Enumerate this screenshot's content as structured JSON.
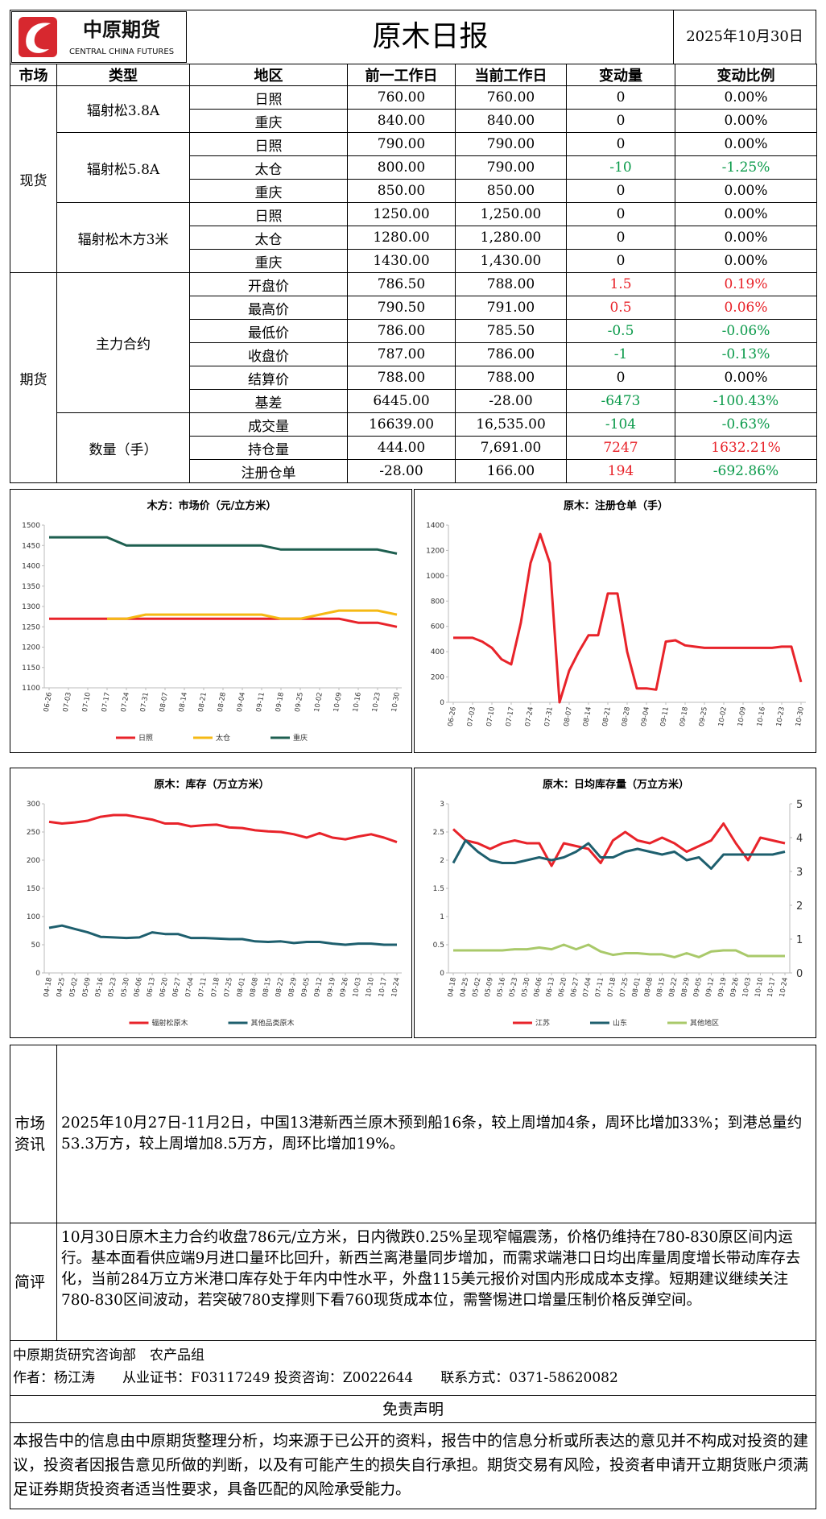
{
  "header": {
    "logo_cn": "中原期货",
    "logo_en": "CENTRAL CHINA FUTURES",
    "title": "原木日报",
    "date": "2025年10月30日"
  },
  "table": {
    "header": [
      "市场",
      "类型",
      "地区",
      "前一工作日",
      "当前工作日",
      "变动量",
      "变动比例"
    ],
    "spot": {
      "market": "现货",
      "groups": [
        {
          "type": "辐射松3.8A",
          "rows": [
            [
              "日照",
              "760.00",
              "760.00",
              "0",
              "0.00%"
            ],
            [
              "重庆",
              "840.00",
              "840.00",
              "0",
              "0.00%"
            ]
          ]
        },
        {
          "type": "辐射松5.8A",
          "rows": [
            [
              "日照",
              "790.00",
              "790.00",
              "0",
              "0.00%"
            ],
            [
              "太仓",
              "800.00",
              "790.00",
              "-10",
              "-1.25%"
            ],
            [
              "重庆",
              "850.00",
              "850.00",
              "0",
              "0.00%"
            ]
          ]
        },
        {
          "type": "辐射松木方3米",
          "rows": [
            [
              "日照",
              "1250.00",
              "1,250.00",
              "0",
              "0.00%"
            ],
            [
              "太仓",
              "1280.00",
              "1,280.00",
              "0",
              "0.00%"
            ],
            [
              "重庆",
              "1430.00",
              "1,430.00",
              "0",
              "0.00%"
            ]
          ]
        }
      ]
    },
    "futures": {
      "market": "期货",
      "groups": [
        {
          "type": "主力合约",
          "rows": [
            [
              "开盘价",
              "786.50",
              "788.00",
              "1.5",
              "0.19%"
            ],
            [
              "最高价",
              "790.50",
              "791.00",
              "0.5",
              "0.06%"
            ],
            [
              "最低价",
              "786.00",
              "785.50",
              "-0.5",
              "-0.06%"
            ],
            [
              "收盘价",
              "787.00",
              "786.00",
              "-1",
              "-0.13%"
            ],
            [
              "结算价",
              "788.00",
              "788.00",
              "0",
              "0.00%"
            ],
            [
              "基差",
              "6445.00",
              "-28.00",
              "-6473",
              "-100.43%"
            ]
          ]
        },
        {
          "type": "数量（手）",
          "rows": [
            [
              "成交量",
              "16639.00",
              "16,535.00",
              "-104",
              "-0.63%"
            ],
            [
              "持仓量",
              "444.00",
              "7,691.00",
              "7247",
              "1632.21%"
            ],
            [
              "注册仓单",
              "-28.00",
              "166.00",
              "194",
              "-692.86%"
            ]
          ]
        }
      ]
    }
  },
  "chart_data": [
    {
      "type": "line",
      "title": "木方：市场价（元/立方米）",
      "legend": "bottom",
      "grid": false,
      "categories": [
        "06-26",
        "07-03",
        "07-10",
        "07-17",
        "07-24",
        "07-31",
        "08-07",
        "08-14",
        "08-21",
        "08-28",
        "09-04",
        "09-11",
        "09-18",
        "09-25",
        "10-02",
        "10-09",
        "10-16",
        "10-23",
        "10-30"
      ],
      "ylim": [
        1100,
        1500
      ],
      "yticks": [
        1100,
        1150,
        1200,
        1250,
        1300,
        1350,
        1400,
        1450,
        1500
      ],
      "series": [
        {
          "name": "日照",
          "color": "#e8232a",
          "values": [
            1270,
            1270,
            1270,
            1270,
            1270,
            1270,
            1270,
            1270,
            1270,
            1270,
            1270,
            1270,
            1270,
            1270,
            1270,
            1270,
            1260,
            1260,
            1250
          ]
        },
        {
          "name": "太仓",
          "color": "#f5b914",
          "values": [
            null,
            null,
            null,
            1270,
            1270,
            1280,
            1280,
            1280,
            1280,
            1280,
            1280,
            1280,
            1270,
            1270,
            1280,
            1290,
            1290,
            1290,
            1280
          ]
        },
        {
          "name": "重庆",
          "color": "#1e5f50",
          "values": [
            1470,
            1470,
            1470,
            1470,
            1450,
            1450,
            1450,
            1450,
            1450,
            1450,
            1450,
            1450,
            1440,
            1440,
            1440,
            1440,
            1440,
            1440,
            1430
          ]
        }
      ]
    },
    {
      "type": "line",
      "title": "原木：注册仓单（手）",
      "legend": "none",
      "grid": false,
      "categories": [
        "06-26",
        null,
        "07-03",
        null,
        "07-10",
        null,
        "07-17",
        null,
        "07-24",
        null,
        "07-31",
        null,
        "08-07",
        null,
        "08-14",
        null,
        "08-21",
        null,
        "08-28",
        null,
        "09-04",
        null,
        "09-11",
        null,
        "09-18",
        null,
        "09-25",
        null,
        "10-02",
        null,
        "10-09",
        null,
        "10-16",
        null,
        "10-23",
        null,
        "10-30"
      ],
      "ylim": [
        0,
        1400
      ],
      "yticks": [
        0,
        200,
        400,
        600,
        800,
        1000,
        1200,
        1400
      ],
      "series": [
        {
          "name": "注册仓单",
          "color": "#e8232a",
          "values": [
            510,
            510,
            510,
            480,
            430,
            340,
            300,
            630,
            1100,
            1330,
            1100,
            0,
            250,
            400,
            530,
            530,
            860,
            860,
            400,
            110,
            110,
            100,
            480,
            490,
            450,
            440,
            430,
            430,
            430,
            430,
            430,
            430,
            430,
            430,
            440,
            440,
            160
          ]
        }
      ]
    },
    {
      "type": "line",
      "title": "原木：库存（万立方米）",
      "legend": "bottom",
      "grid": false,
      "categories": [
        "04-18",
        "04-25",
        "05-02",
        "05-09",
        "05-16",
        "05-23",
        "05-30",
        "06-06",
        "06-13",
        "06-20",
        "06-27",
        "07-04",
        "07-11",
        "07-18",
        "07-25",
        "08-01",
        "08-08",
        "08-15",
        "08-22",
        "08-29",
        "09-05",
        "09-12",
        "09-19",
        "09-26",
        "10-03",
        "10-10",
        "10-17",
        "10-24"
      ],
      "ylim": [
        0,
        300
      ],
      "yticks": [
        0,
        50,
        100,
        150,
        200,
        250,
        300
      ],
      "series": [
        {
          "name": "辐射松原木",
          "color": "#e8232a",
          "values": [
            268,
            265,
            267,
            270,
            277,
            280,
            280,
            276,
            272,
            265,
            265,
            260,
            262,
            263,
            258,
            257,
            253,
            251,
            250,
            246,
            240,
            248,
            240,
            237,
            242,
            246,
            240,
            232
          ]
        },
        {
          "name": "其他品类原木",
          "color": "#1e5f6e",
          "values": [
            80,
            84,
            78,
            72,
            64,
            63,
            62,
            63,
            72,
            69,
            69,
            62,
            62,
            61,
            60,
            60,
            56,
            55,
            56,
            53,
            55,
            55,
            52,
            50,
            52,
            52,
            50,
            50
          ]
        }
      ]
    },
    {
      "type": "line",
      "title": "原木：日均库存量（万立方米）",
      "legend": "bottom",
      "grid": false,
      "categories": [
        "04-18",
        "04-25",
        "05-02",
        "05-09",
        "05-16",
        "05-23",
        "05-30",
        "06-06",
        "06-13",
        "06-20",
        "06-27",
        "07-04",
        "07-11",
        "07-18",
        "07-25",
        "08-01",
        "08-08",
        "08-15",
        "08-22",
        "08-29",
        "09-05",
        "09-12",
        "09-19",
        "09-26",
        "10-03",
        "10-10",
        "10-17",
        "10-24"
      ],
      "ylim": [
        0,
        3
      ],
      "yticks": [
        0,
        0.5,
        1,
        1.5,
        2,
        2.5,
        3
      ],
      "y2lim": [
        0,
        5
      ],
      "y2ticks": [
        0,
        1,
        2,
        3,
        4,
        5
      ],
      "series": [
        {
          "name": "江苏",
          "color": "#e8232a",
          "values": [
            2.55,
            2.35,
            2.3,
            2.2,
            2.3,
            2.35,
            2.3,
            2.3,
            1.9,
            2.3,
            2.25,
            2.2,
            1.95,
            2.35,
            2.5,
            2.35,
            2.3,
            2.4,
            2.3,
            2.15,
            2.25,
            2.35,
            2.65,
            2.3,
            2.0,
            2.4,
            2.35,
            2.3
          ]
        },
        {
          "name": "山东",
          "color": "#1e5f6e",
          "values": [
            1.95,
            2.35,
            2.15,
            2.0,
            1.95,
            1.95,
            2.0,
            2.05,
            2.0,
            2.05,
            2.15,
            2.3,
            2.05,
            2.05,
            2.15,
            2.2,
            2.15,
            2.1,
            2.15,
            2.0,
            2.05,
            1.85,
            2.1,
            2.1,
            2.1,
            2.1,
            2.1,
            2.15
          ]
        },
        {
          "name": "其他地区",
          "color": "#a9c96a",
          "values": [
            0.4,
            0.4,
            0.4,
            0.4,
            0.4,
            0.42,
            0.42,
            0.45,
            0.42,
            0.5,
            0.42,
            0.5,
            0.38,
            0.32,
            0.35,
            0.35,
            0.33,
            0.33,
            0.28,
            0.35,
            0.28,
            0.38,
            0.4,
            0.4,
            0.3,
            0.3,
            0.3,
            0.3
          ]
        }
      ]
    }
  ],
  "info": {
    "label": "市场资讯",
    "text": "2025年10月27日-11月2日，中国13港新西兰原木预到船16条，较上周增加4条，周环比增加33%；到港总量约53.3万方，较上周增加8.5万方，周环比增加19%。"
  },
  "comment": {
    "label": "简评",
    "text": "10月30日原木主力合约收盘786元/立方米，日内微跌0.25%呈现窄幅震荡，价格仍维持在780-830原区间内运行。基本面看供应端9月进口量环比回升，新西兰离港量同步增加，而需求端港口日均出库量周度增长带动库存去化，当前284万立方米港口库存处于年内中性水平，外盘115美元报价对国内形成成本支撑。短期建议继续关注780-830区间波动，若突破780支撑则下看760现货成本位，需警惕进口增量压制价格反弹空间。"
  },
  "footer": {
    "dept": "中原期货研究咨询部　农产品组",
    "author": "作者：杨江涛　　从业证书：F03117249 投资咨询：Z0022644　　联系方式：0371-58620082"
  },
  "disclaimer": {
    "title": "免责声明",
    "text": "本报告中的信息由中原期货整理分析，均来源于已公开的资料，报告中的信息分析或所表达的意见并不构成对投资的建议，投资者因报告意见所做的判断，以及有可能产生的损失自行承担。期货交易有风险，投资者申请开立期货账户须满足证券期货投资者适当性要求，具备匹配的风险承受能力。"
  }
}
